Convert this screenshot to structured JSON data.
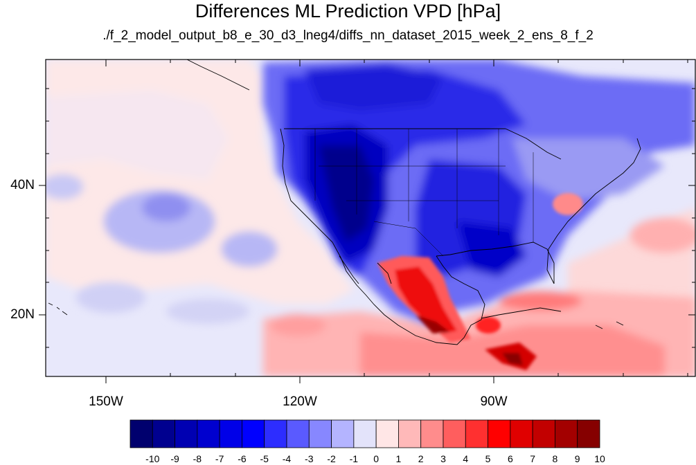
{
  "title": "Differences ML Prediction VPD [hPa]",
  "subtitle": "./f_2_model_output_b8_e_30_d3_lneg4/diffs_nn_dataset_2015_week_2_ens_8_f_2",
  "map": {
    "lon_range": [
      -160,
      -60
    ],
    "lat_range": [
      10,
      59
    ],
    "lat_labels": [
      "40N",
      "20N"
    ],
    "lat_values": [
      40,
      20
    ],
    "lon_labels": [
      "150W",
      "120W",
      "90W"
    ],
    "lon_values": [
      -150,
      -120,
      -90
    ]
  },
  "colorbar": {
    "labels": [
      "-10",
      "-9",
      "-8",
      "-7",
      "-6",
      "-5",
      "-4",
      "-3",
      "-2",
      "-1",
      "0",
      "1",
      "2",
      "3",
      "4",
      "5",
      "6",
      "7",
      "8",
      "9",
      "10"
    ],
    "colors": [
      "#00006e",
      "#00008f",
      "#0000b2",
      "#0000cf",
      "#0000e8",
      "#0000ff",
      "#2d2dff",
      "#5a5aff",
      "#8787ff",
      "#b4b4ff",
      "#e3e3fa",
      "#ffe6e6",
      "#ffb9b9",
      "#ff8c8c",
      "#ff5e5e",
      "#ff3030",
      "#ff0000",
      "#e00000",
      "#c20000",
      "#a30000",
      "#860000"
    ]
  }
}
